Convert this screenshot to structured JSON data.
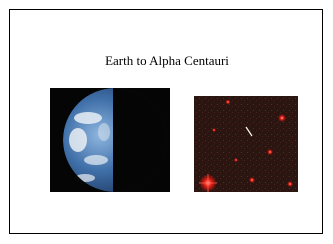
{
  "title": "Earth to Alpha Centauri"
}
